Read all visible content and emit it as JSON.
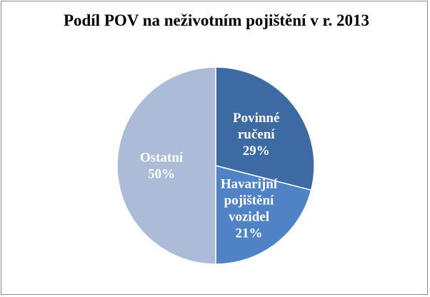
{
  "chart_data": {
    "type": "pie",
    "title": "Podíl POV na neživotním pojištění v r. 2013",
    "slices": [
      {
        "label_lines": [
          "Povinné",
          "ručení"
        ],
        "value_text": "29%",
        "value": 29,
        "color": "#3d6aa3"
      },
      {
        "label_lines": [
          "Havarijní",
          "pojištění",
          "vozidel"
        ],
        "value_text": "21%",
        "value": 21,
        "color": "#4f83c6"
      },
      {
        "label_lines": [
          "Ostatní"
        ],
        "value_text": "50%",
        "value": 50,
        "color": "#abbbd8"
      }
    ],
    "start_angle_deg": 0,
    "direction": "clockwise",
    "legend": "none",
    "data_labels": "inside"
  }
}
